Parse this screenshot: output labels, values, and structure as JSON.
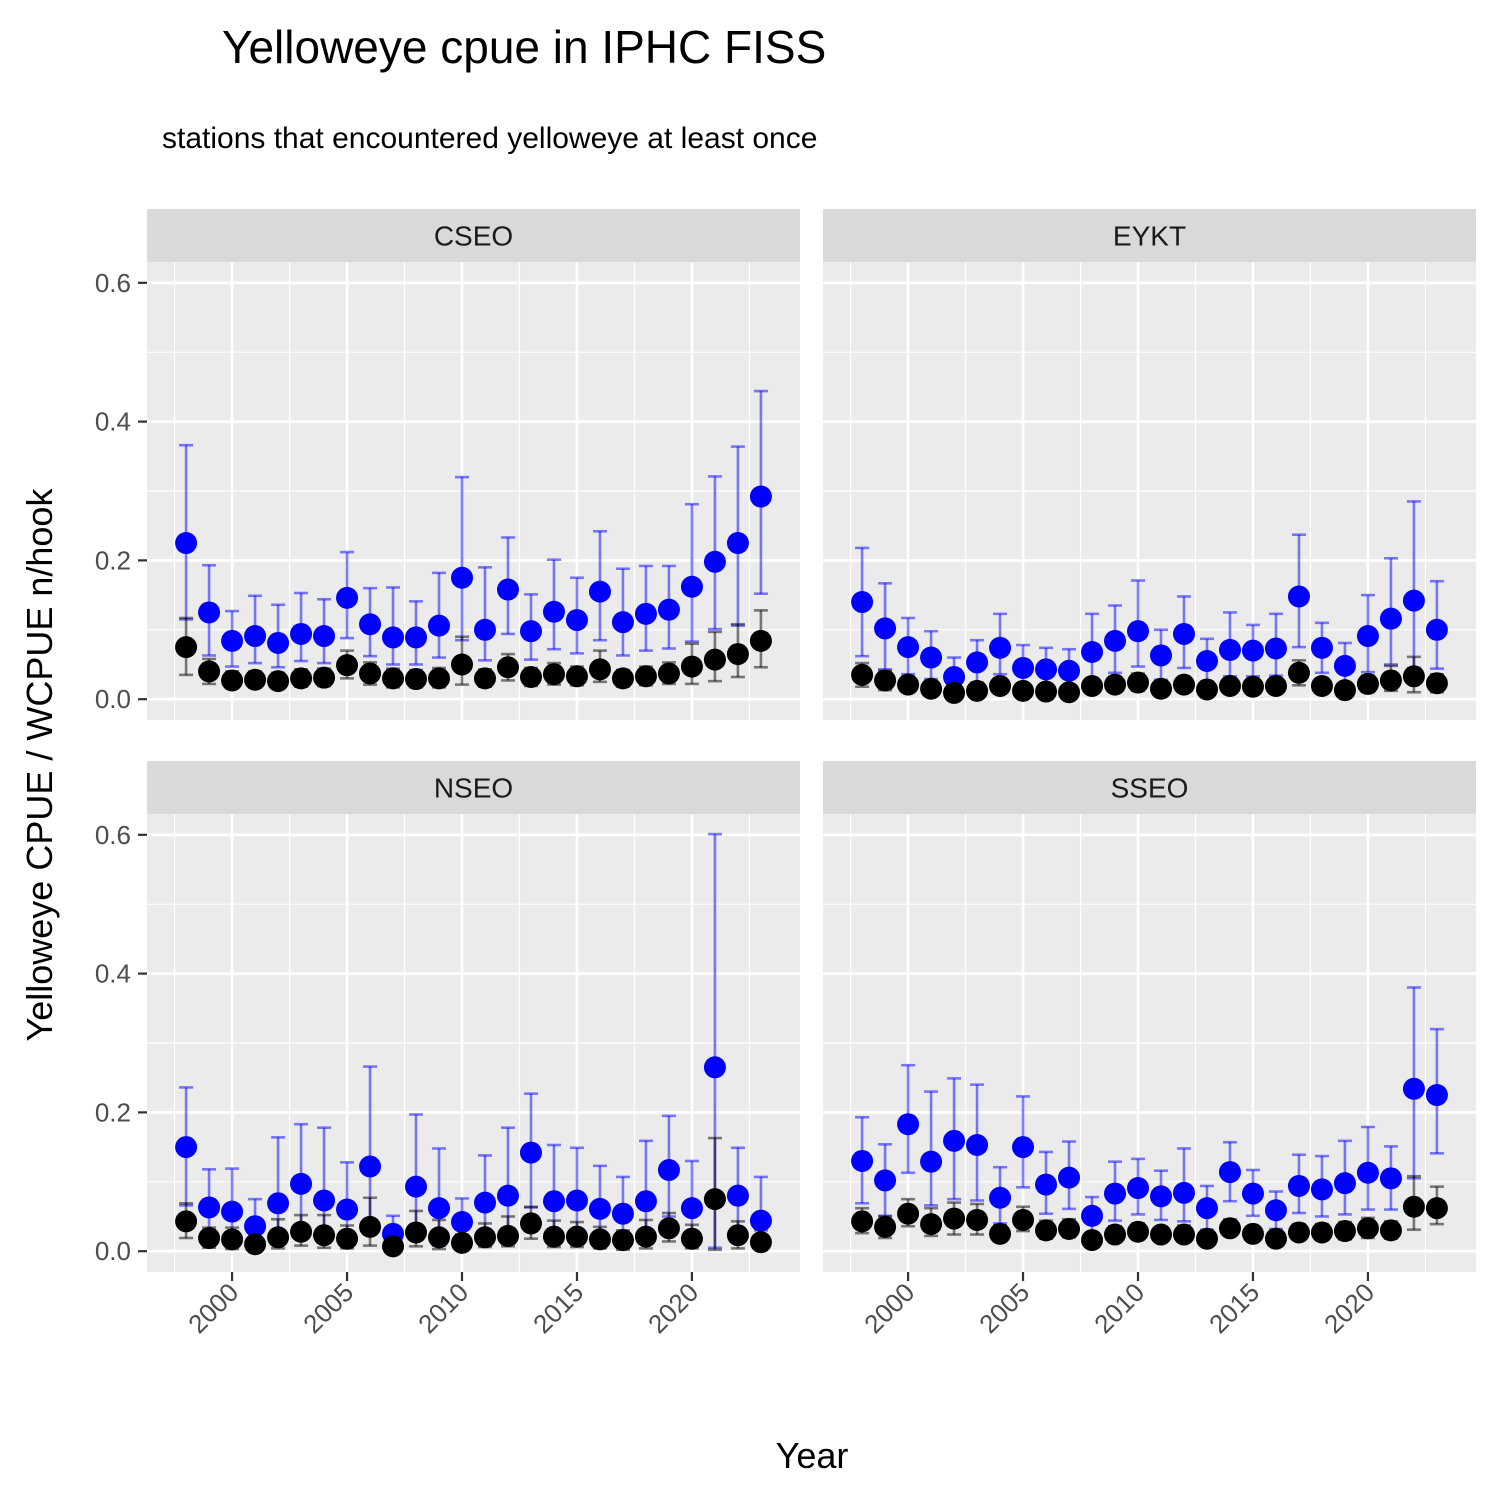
{
  "chart_data": {
    "type": "scatter",
    "title": "Yelloweye cpue in IPHC FISS",
    "subtitle": "stations that encountered yelloweye at least once",
    "xlabel": "Year",
    "ylabel": "Yelloweye CPUE / WCPUE n/hook",
    "xlim": [
      1996.3,
      2024.7
    ],
    "ylim": [
      -0.03,
      0.63
    ],
    "x_ticks": [
      2000,
      2005,
      2010,
      2015,
      2020
    ],
    "y_ticks": [
      0.0,
      0.2,
      0.4,
      0.6
    ],
    "y_tick_labels": [
      "0.0",
      "0.2",
      "0.4",
      "0.6"
    ],
    "grid": true,
    "legend": "none",
    "colors": {
      "blue_series": "#0000ff",
      "black_series": "#000000",
      "panel_bg": "#ebebeb",
      "strip_bg": "#d9d9d9",
      "grid": "#ffffff"
    },
    "years": [
      1998,
      1999,
      2000,
      2001,
      2002,
      2003,
      2004,
      2005,
      2006,
      2007,
      2008,
      2009,
      2010,
      2011,
      2012,
      2013,
      2014,
      2015,
      2016,
      2017,
      2018,
      2019,
      2020,
      2021,
      2022,
      2023
    ],
    "panels": [
      {
        "label": "CSEO",
        "blue": {
          "y": [
            0.225,
            0.125,
            0.084,
            0.091,
            0.081,
            0.094,
            0.091,
            0.146,
            0.108,
            0.089,
            0.089,
            0.106,
            0.175,
            0.1,
            0.158,
            0.098,
            0.126,
            0.114,
            0.155,
            0.111,
            0.123,
            0.129,
            0.162,
            0.198,
            0.225,
            0.292
          ],
          "lo": [
            0.115,
            0.063,
            0.047,
            0.052,
            0.046,
            0.055,
            0.052,
            0.088,
            0.062,
            0.05,
            0.05,
            0.06,
            0.085,
            0.056,
            0.094,
            0.057,
            0.072,
            0.066,
            0.085,
            0.063,
            0.07,
            0.073,
            0.083,
            0.101,
            0.106,
            0.152
          ],
          "hi": [
            0.366,
            0.193,
            0.127,
            0.149,
            0.136,
            0.153,
            0.144,
            0.212,
            0.16,
            0.161,
            0.141,
            0.182,
            0.32,
            0.19,
            0.233,
            0.151,
            0.201,
            0.175,
            0.242,
            0.188,
            0.192,
            0.192,
            0.281,
            0.321,
            0.364,
            0.444
          ]
        },
        "black": {
          "y": [
            0.075,
            0.04,
            0.027,
            0.028,
            0.026,
            0.03,
            0.031,
            0.049,
            0.037,
            0.03,
            0.029,
            0.03,
            0.05,
            0.03,
            0.046,
            0.032,
            0.036,
            0.033,
            0.043,
            0.03,
            0.033,
            0.037,
            0.047,
            0.057,
            0.065,
            0.084
          ],
          "lo": [
            0.035,
            0.022,
            0.016,
            0.017,
            0.015,
            0.018,
            0.019,
            0.03,
            0.021,
            0.017,
            0.017,
            0.017,
            0.021,
            0.018,
            0.027,
            0.019,
            0.021,
            0.02,
            0.025,
            0.018,
            0.02,
            0.022,
            0.022,
            0.026,
            0.032,
            0.046
          ],
          "hi": [
            0.117,
            0.058,
            0.04,
            0.04,
            0.038,
            0.043,
            0.044,
            0.07,
            0.053,
            0.044,
            0.042,
            0.045,
            0.09,
            0.043,
            0.065,
            0.045,
            0.052,
            0.047,
            0.07,
            0.042,
            0.047,
            0.053,
            0.08,
            0.097,
            0.108,
            0.128
          ]
        }
      },
      {
        "label": "EYKT",
        "blue": {
          "y": [
            0.14,
            0.102,
            0.075,
            0.06,
            0.032,
            0.053,
            0.074,
            0.045,
            0.043,
            0.041,
            0.068,
            0.084,
            0.098,
            0.063,
            0.094,
            0.055,
            0.071,
            0.07,
            0.073,
            0.148,
            0.074,
            0.048,
            0.091,
            0.116,
            0.142,
            0.1
          ],
          "lo": [
            0.062,
            0.043,
            0.036,
            0.029,
            0.012,
            0.024,
            0.036,
            0.02,
            0.018,
            0.017,
            0.03,
            0.038,
            0.047,
            0.028,
            0.045,
            0.025,
            0.033,
            0.033,
            0.034,
            0.075,
            0.038,
            0.021,
            0.039,
            0.05,
            0.045,
            0.044
          ],
          "hi": [
            0.218,
            0.167,
            0.117,
            0.098,
            0.06,
            0.085,
            0.123,
            0.078,
            0.074,
            0.072,
            0.123,
            0.135,
            0.171,
            0.1,
            0.148,
            0.087,
            0.125,
            0.107,
            0.123,
            0.237,
            0.11,
            0.081,
            0.15,
            0.203,
            0.285,
            0.17
          ]
        },
        "black": {
          "y": [
            0.035,
            0.027,
            0.021,
            0.015,
            0.009,
            0.012,
            0.019,
            0.012,
            0.011,
            0.01,
            0.019,
            0.021,
            0.024,
            0.015,
            0.021,
            0.014,
            0.019,
            0.018,
            0.019,
            0.038,
            0.019,
            0.013,
            0.022,
            0.027,
            0.033,
            0.023
          ],
          "lo": [
            0.018,
            0.013,
            0.01,
            0.006,
            0.003,
            0.005,
            0.009,
            0.005,
            0.004,
            0.004,
            0.009,
            0.01,
            0.012,
            0.007,
            0.011,
            0.006,
            0.009,
            0.009,
            0.009,
            0.02,
            0.01,
            0.006,
            0.01,
            0.012,
            0.01,
            0.01
          ],
          "hi": [
            0.052,
            0.041,
            0.032,
            0.024,
            0.015,
            0.019,
            0.03,
            0.019,
            0.018,
            0.016,
            0.03,
            0.032,
            0.037,
            0.023,
            0.032,
            0.022,
            0.03,
            0.028,
            0.03,
            0.056,
            0.03,
            0.02,
            0.034,
            0.048,
            0.061,
            0.036
          ]
        }
      },
      {
        "label": "NSEO",
        "blue": {
          "y": [
            0.15,
            0.063,
            0.057,
            0.036,
            0.069,
            0.097,
            0.073,
            0.06,
            0.122,
            0.025,
            0.093,
            0.062,
            0.042,
            0.07,
            0.08,
            0.142,
            0.072,
            0.073,
            0.061,
            0.054,
            0.072,
            0.117,
            0.062,
            0.265,
            0.08,
            0.044
          ],
          "lo": [
            0.066,
            0.015,
            0.01,
            0.005,
            0.015,
            0.027,
            0.018,
            0.015,
            0.026,
            0.002,
            0.023,
            0.008,
            0.008,
            0.02,
            0.023,
            0.063,
            0.021,
            0.02,
            0.013,
            0.005,
            0.012,
            0.05,
            0.012,
            0.005,
            0.015,
            0.005
          ],
          "hi": [
            0.236,
            0.118,
            0.119,
            0.075,
            0.164,
            0.183,
            0.178,
            0.128,
            0.266,
            0.051,
            0.197,
            0.148,
            0.076,
            0.138,
            0.178,
            0.227,
            0.153,
            0.149,
            0.123,
            0.107,
            0.159,
            0.195,
            0.13,
            0.601,
            0.149,
            0.107
          ]
        },
        "black": {
          "y": [
            0.043,
            0.019,
            0.017,
            0.01,
            0.02,
            0.028,
            0.023,
            0.018,
            0.035,
            0.007,
            0.027,
            0.02,
            0.012,
            0.02,
            0.022,
            0.04,
            0.021,
            0.021,
            0.017,
            0.016,
            0.021,
            0.033,
            0.018,
            0.075,
            0.023,
            0.013
          ],
          "lo": [
            0.019,
            0.005,
            0.003,
            0.002,
            0.004,
            0.008,
            0.005,
            0.004,
            0.008,
            0.001,
            0.007,
            0.003,
            0.002,
            0.006,
            0.007,
            0.018,
            0.006,
            0.006,
            0.004,
            0.002,
            0.004,
            0.014,
            0.004,
            0.002,
            0.004,
            0.002
          ],
          "hi": [
            0.069,
            0.034,
            0.034,
            0.021,
            0.046,
            0.052,
            0.052,
            0.037,
            0.077,
            0.014,
            0.058,
            0.045,
            0.024,
            0.04,
            0.05,
            0.064,
            0.044,
            0.042,
            0.035,
            0.03,
            0.045,
            0.055,
            0.038,
            0.163,
            0.043,
            0.03
          ]
        }
      },
      {
        "label": "SSEO",
        "blue": {
          "y": [
            0.13,
            0.102,
            0.183,
            0.129,
            0.159,
            0.153,
            0.077,
            0.15,
            0.096,
            0.106,
            0.051,
            0.083,
            0.091,
            0.079,
            0.084,
            0.062,
            0.114,
            0.083,
            0.059,
            0.094,
            0.089,
            0.098,
            0.113,
            0.105,
            0.234,
            0.225
          ],
          "lo": [
            0.069,
            0.051,
            0.113,
            0.066,
            0.075,
            0.073,
            0.04,
            0.092,
            0.054,
            0.061,
            0.027,
            0.044,
            0.053,
            0.045,
            0.043,
            0.031,
            0.072,
            0.051,
            0.032,
            0.055,
            0.05,
            0.053,
            0.06,
            0.06,
            0.105,
            0.141
          ],
          "hi": [
            0.193,
            0.154,
            0.268,
            0.23,
            0.249,
            0.24,
            0.121,
            0.223,
            0.143,
            0.158,
            0.078,
            0.129,
            0.133,
            0.116,
            0.148,
            0.094,
            0.157,
            0.117,
            0.086,
            0.139,
            0.137,
            0.159,
            0.179,
            0.151,
            0.38,
            0.32
          ]
        },
        "black": {
          "y": [
            0.043,
            0.035,
            0.054,
            0.039,
            0.047,
            0.045,
            0.025,
            0.045,
            0.03,
            0.032,
            0.016,
            0.024,
            0.028,
            0.024,
            0.024,
            0.018,
            0.033,
            0.025,
            0.018,
            0.027,
            0.027,
            0.029,
            0.033,
            0.03,
            0.064,
            0.062
          ],
          "lo": [
            0.026,
            0.019,
            0.036,
            0.022,
            0.024,
            0.024,
            0.014,
            0.029,
            0.018,
            0.02,
            0.009,
            0.013,
            0.017,
            0.014,
            0.014,
            0.01,
            0.022,
            0.016,
            0.01,
            0.017,
            0.016,
            0.017,
            0.019,
            0.018,
            0.031,
            0.039
          ],
          "hi": [
            0.062,
            0.05,
            0.075,
            0.062,
            0.07,
            0.068,
            0.037,
            0.064,
            0.044,
            0.046,
            0.024,
            0.036,
            0.04,
            0.034,
            0.037,
            0.027,
            0.046,
            0.035,
            0.026,
            0.039,
            0.039,
            0.042,
            0.048,
            0.043,
            0.108,
            0.093
          ]
        }
      }
    ]
  }
}
